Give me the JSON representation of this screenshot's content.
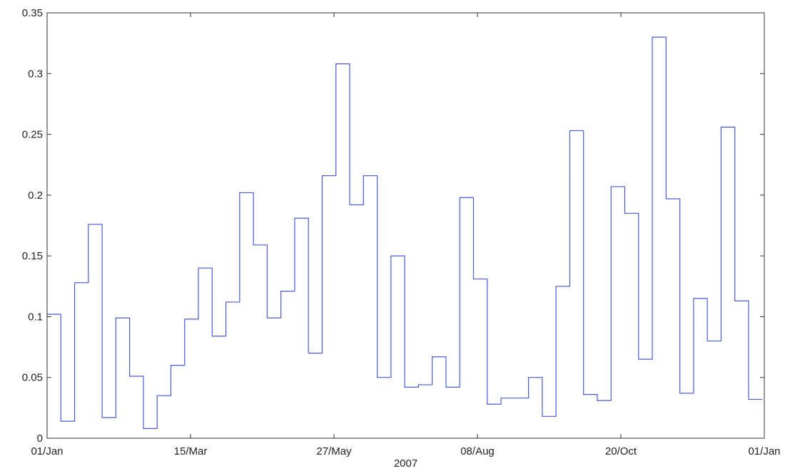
{
  "chart_data": {
    "type": "line",
    "style": "stairs",
    "title": "",
    "xlabel": "2007",
    "ylabel": "",
    "xlim": [
      "2007-01-01",
      "2008-01-01"
    ],
    "ylim": [
      0,
      0.35
    ],
    "grid": false,
    "legend": "none",
    "line_color": "#4a5bd6",
    "x_ticks": [
      {
        "date": "2007-01-01",
        "label": "01/Jan"
      },
      {
        "date": "2007-03-15",
        "label": "15/Mar"
      },
      {
        "date": "2007-05-27",
        "label": "27/May"
      },
      {
        "date": "2007-08-08",
        "label": "08/Aug"
      },
      {
        "date": "2007-10-20",
        "label": "20/Oct"
      },
      {
        "date": "2008-01-01",
        "label": "01/Jan"
      }
    ],
    "y_ticks": [
      {
        "value": 0,
        "label": "0"
      },
      {
        "value": 0.05,
        "label": "0.05"
      },
      {
        "value": 0.1,
        "label": "0.1"
      },
      {
        "value": 0.15,
        "label": "0.15"
      },
      {
        "value": 0.2,
        "label": "0.2"
      },
      {
        "value": 0.25,
        "label": "0.25"
      },
      {
        "value": 0.3,
        "label": "0.3"
      },
      {
        "value": 0.35,
        "label": "0.35"
      }
    ],
    "series": [
      {
        "x": [
          "2007-01-01",
          "2007-01-08",
          "2007-01-15",
          "2007-01-22",
          "2007-01-29",
          "2007-02-05",
          "2007-02-12",
          "2007-02-19",
          "2007-02-26",
          "2007-03-05",
          "2007-03-12",
          "2007-03-19",
          "2007-03-26",
          "2007-04-02",
          "2007-04-09",
          "2007-04-16",
          "2007-04-23",
          "2007-04-30",
          "2007-05-07",
          "2007-05-14",
          "2007-05-21",
          "2007-05-28",
          "2007-06-04",
          "2007-06-11",
          "2007-06-18",
          "2007-06-25",
          "2007-07-02",
          "2007-07-09",
          "2007-07-16",
          "2007-07-23",
          "2007-07-30",
          "2007-08-06",
          "2007-08-13",
          "2007-08-20",
          "2007-08-27",
          "2007-09-03",
          "2007-09-10",
          "2007-09-17",
          "2007-09-24",
          "2007-10-01",
          "2007-10-08",
          "2007-10-15",
          "2007-10-22",
          "2007-10-29",
          "2007-11-05",
          "2007-11-12",
          "2007-11-19",
          "2007-11-26",
          "2007-12-03",
          "2007-12-10",
          "2007-12-17",
          "2007-12-24"
        ],
        "values": [
          0.102,
          0.014,
          0.128,
          0.176,
          0.017,
          0.099,
          0.051,
          0.008,
          0.035,
          0.06,
          0.098,
          0.14,
          0.084,
          0.112,
          0.202,
          0.159,
          0.099,
          0.121,
          0.181,
          0.07,
          0.216,
          0.308,
          0.192,
          0.216,
          0.05,
          0.15,
          0.042,
          0.044,
          0.067,
          0.042,
          0.198,
          0.131,
          0.028,
          0.033,
          0.033,
          0.05,
          0.018,
          0.125,
          0.253,
          0.036,
          0.031,
          0.207,
          0.185,
          0.065,
          0.33,
          0.197,
          0.037,
          0.115,
          0.08,
          0.256,
          0.113,
          0.032
        ]
      }
    ]
  }
}
